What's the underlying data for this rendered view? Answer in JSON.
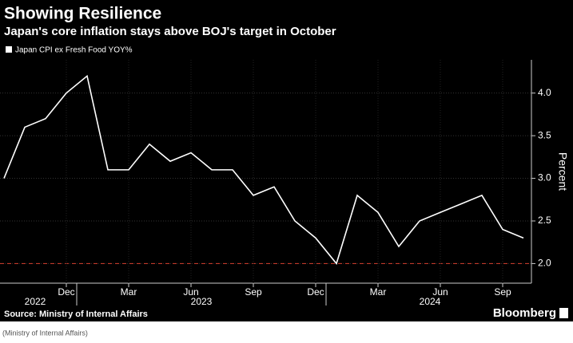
{
  "chart_data": {
    "type": "line",
    "title": "Showing Resilience",
    "subtitle": "Japan's core inflation stays above BOJ's target in October",
    "y_axis_label": "Percent",
    "source": "Source: Ministry of Internal Affairs",
    "brand": "Bloomberg",
    "caption": "(Ministry of Internal Affairs)",
    "x": [
      "2022-09",
      "2022-10",
      "2022-11",
      "2022-12",
      "2023-01",
      "2023-02",
      "2023-03",
      "2023-04",
      "2023-05",
      "2023-06",
      "2023-07",
      "2023-08",
      "2023-09",
      "2023-10",
      "2023-11",
      "2023-12",
      "2024-01",
      "2024-02",
      "2024-03",
      "2024-04",
      "2024-05",
      "2024-06",
      "2024-07",
      "2024-08",
      "2024-09",
      "2024-10"
    ],
    "series": [
      {
        "name": "Japan CPI ex Fresh Food YOY%",
        "color": "#ffffff",
        "values": [
          3.0,
          3.6,
          3.7,
          4.0,
          4.2,
          3.1,
          3.1,
          3.4,
          3.2,
          3.3,
          3.1,
          3.1,
          2.8,
          2.9,
          2.5,
          2.3,
          2.0,
          2.8,
          2.6,
          2.2,
          2.5,
          2.6,
          2.7,
          2.8,
          2.4,
          2.3
        ]
      }
    ],
    "xticks": [
      {
        "value": "2022-12",
        "label": "Dec"
      },
      {
        "value": "2023-03",
        "label": "Mar"
      },
      {
        "value": "2023-06",
        "label": "Jun"
      },
      {
        "value": "2023-09",
        "label": "Sep"
      },
      {
        "value": "2023-12",
        "label": "Dec"
      },
      {
        "value": "2024-03",
        "label": "Mar"
      },
      {
        "value": "2024-06",
        "label": "Jun"
      },
      {
        "value": "2024-09",
        "label": "Sep"
      }
    ],
    "years": [
      "2022",
      "2023",
      "2024"
    ],
    "ylim": [
      1.77,
      4.39
    ],
    "yticks": [
      {
        "value": 2.0,
        "label": "2.0"
      },
      {
        "value": 2.5,
        "label": "2.5"
      },
      {
        "value": 3.0,
        "label": "3.0"
      },
      {
        "value": 3.5,
        "label": "3.5"
      },
      {
        "value": 4.0,
        "label": "4.0"
      }
    ],
    "reference_line": {
      "value": 2.0,
      "color": "#c0392b"
    },
    "grid": true
  }
}
